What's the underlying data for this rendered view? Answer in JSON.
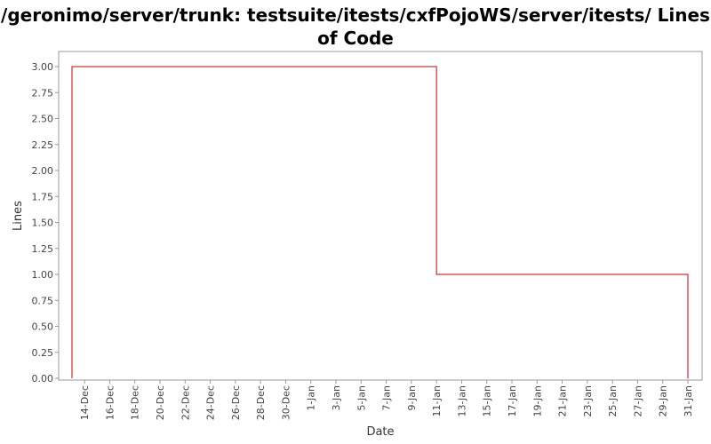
{
  "chart_data": {
    "type": "line",
    "step": true,
    "title": "/geronimo/server/trunk: testsuite/itests/cxfPojoWS/server/itests/ Lines of Code",
    "xlabel": "Date",
    "ylabel": "Lines",
    "ylim": [
      0,
      3.0
    ],
    "yticks": [
      "0.00",
      "0.25",
      "0.50",
      "0.75",
      "1.00",
      "1.25",
      "1.50",
      "1.75",
      "2.00",
      "2.25",
      "2.50",
      "2.75",
      "3.00"
    ],
    "xticks": [
      "14-Dec",
      "16-Dec",
      "18-Dec",
      "20-Dec",
      "22-Dec",
      "24-Dec",
      "26-Dec",
      "28-Dec",
      "30-Dec",
      "1-Jan",
      "3-Jan",
      "5-Jan",
      "7-Jan",
      "9-Jan",
      "11-Jan",
      "13-Jan",
      "15-Jan",
      "17-Jan",
      "19-Jan",
      "21-Jan",
      "23-Jan",
      "25-Jan",
      "27-Jan",
      "29-Jan",
      "31-Jan"
    ],
    "series": [
      {
        "x": [
          "13-Dec",
          "11-Jan",
          "31-Jan"
        ],
        "values": [
          3,
          1,
          0
        ]
      }
    ],
    "grid": false,
    "colors": {
      "line": "#cc0000",
      "plot_border": "#999999",
      "background": "#ffffff"
    }
  }
}
